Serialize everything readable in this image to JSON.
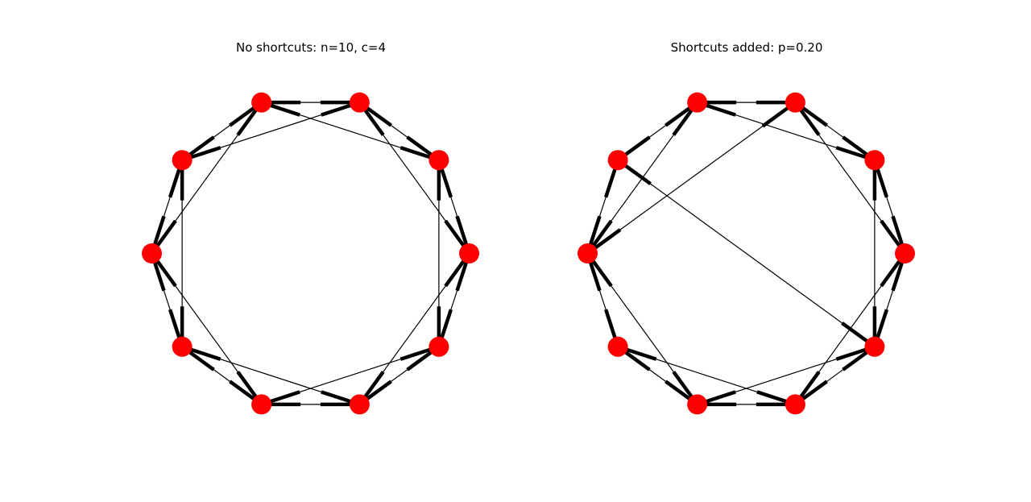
{
  "panels": [
    {
      "id": "left",
      "title": "No shortcuts: n=10, c=4",
      "nodes": 10,
      "lattice_edges": [
        [
          0,
          1
        ],
        [
          1,
          2
        ],
        [
          2,
          3
        ],
        [
          3,
          4
        ],
        [
          4,
          5
        ],
        [
          5,
          6
        ],
        [
          6,
          7
        ],
        [
          7,
          8
        ],
        [
          8,
          9
        ],
        [
          9,
          0
        ],
        [
          0,
          2
        ],
        [
          1,
          3
        ],
        [
          2,
          4
        ],
        [
          3,
          5
        ],
        [
          4,
          6
        ],
        [
          5,
          7
        ],
        [
          6,
          8
        ],
        [
          7,
          9
        ],
        [
          8,
          0
        ],
        [
          9,
          1
        ]
      ],
      "shortcut_edges": []
    },
    {
      "id": "right",
      "title": "Shortcuts added: p=0.20",
      "nodes": 10,
      "lattice_edges": [
        [
          0,
          1
        ],
        [
          1,
          2
        ],
        [
          2,
          3
        ],
        [
          3,
          4
        ],
        [
          4,
          5
        ],
        [
          5,
          6
        ],
        [
          6,
          7
        ],
        [
          7,
          8
        ],
        [
          8,
          9
        ],
        [
          9,
          0
        ],
        [
          0,
          2
        ],
        [
          1,
          3
        ],
        [
          2,
          4
        ],
        [
          3,
          5
        ],
        [
          4,
          6
        ],
        [
          5,
          7
        ],
        [
          6,
          8
        ],
        [
          7,
          9
        ],
        [
          8,
          0
        ],
        [
          9,
          1
        ]
      ],
      "shortcut_edges": [
        [
          4,
          9
        ],
        [
          0,
          8
        ],
        [
          5,
          2
        ]
      ]
    }
  ],
  "colors": {
    "node": "#ff0000",
    "edge": "#000000",
    "background": "#ffffff"
  }
}
